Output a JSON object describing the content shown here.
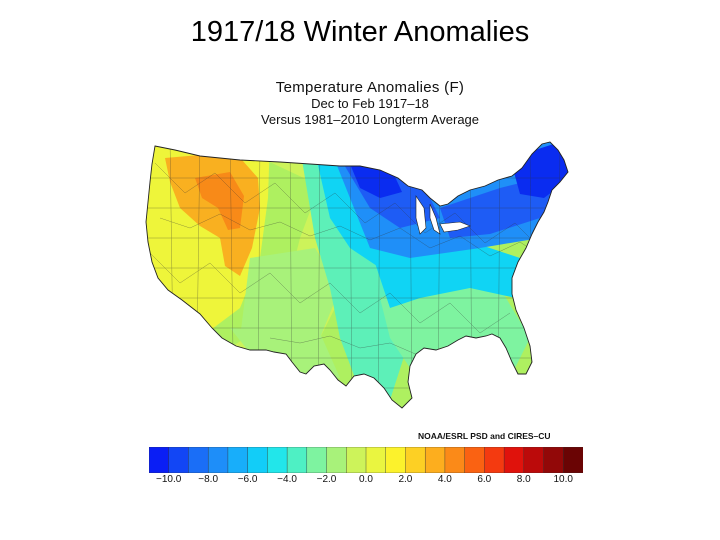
{
  "slide": {
    "title": "1917/18 Winter Anomalies"
  },
  "map": {
    "title_line1": "Temperature Anomalies (F)",
    "title_line2": "Dec to Feb 1917–18",
    "title_line3": "Versus 1981–2010 Longterm Average",
    "credit": "NOAA/ESRL PSD and CIRES–CU",
    "colors": {
      "-10": "#0a2cf0",
      "-8": "#1e5cf5",
      "-6": "#1f8ff8",
      "-4": "#10d4f4",
      "-2": "#5df0b8",
      "0": "#aef060",
      "2": "#eef53a",
      "4": "#f9b020",
      "6": "#ff6a10",
      "8": "#e81010",
      "10": "#8a0c0c"
    }
  },
  "colorbar": {
    "ticks": [
      "−10.0",
      "−8.0",
      "−6.0",
      "−4.0",
      "−2.0",
      "0.0",
      "2.0",
      "4.0",
      "6.0",
      "8.0",
      "10.0"
    ],
    "colors": [
      "#0a1ef5",
      "#1246f5",
      "#1a6ef7",
      "#1e8ef9",
      "#18aefa",
      "#12cdf8",
      "#22e6ea",
      "#4ef0c4",
      "#7ef3a0",
      "#a8f27a",
      "#cdf35a",
      "#eaf540",
      "#fcf22c",
      "#fdd024",
      "#fdae1e",
      "#fb8a18",
      "#fa6212",
      "#f43a10",
      "#e0120c",
      "#bb0a0a",
      "#920808",
      "#6a0404"
    ]
  }
}
